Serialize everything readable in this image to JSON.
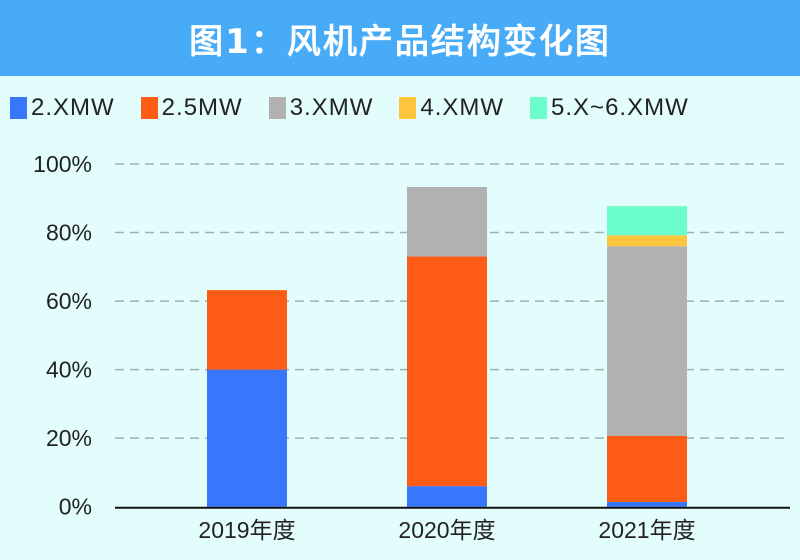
{
  "title": "图1：风机产品结构变化图",
  "chart_data": {
    "type": "bar",
    "stacked": true,
    "title": "图1：风机产品结构变化图",
    "categories": [
      "2019年度",
      "2020年度",
      "2021年度"
    ],
    "series": [
      {
        "name": "2.XMW",
        "color": "#3877fc",
        "values": [
          40,
          6,
          1.4
        ]
      },
      {
        "name": "2.5MW",
        "color": "#fe5b17",
        "values": [
          23.2,
          67,
          19.3
        ]
      },
      {
        "name": "3.XMW",
        "color": "#b1b1b1",
        "values": [
          0,
          20.3,
          55.3
        ]
      },
      {
        "name": "4.XMW",
        "color": "#fdc53e",
        "values": [
          0,
          0,
          3.2
        ]
      },
      {
        "name": "5.X~6.XMW",
        "color": "#6bfdca",
        "values": [
          0,
          0,
          8.5
        ]
      }
    ],
    "yticks": [
      "0%",
      "20%",
      "40%",
      "60%",
      "80%",
      "100%"
    ],
    "ylim": [
      0,
      100
    ],
    "grid": true,
    "legend": "top"
  }
}
